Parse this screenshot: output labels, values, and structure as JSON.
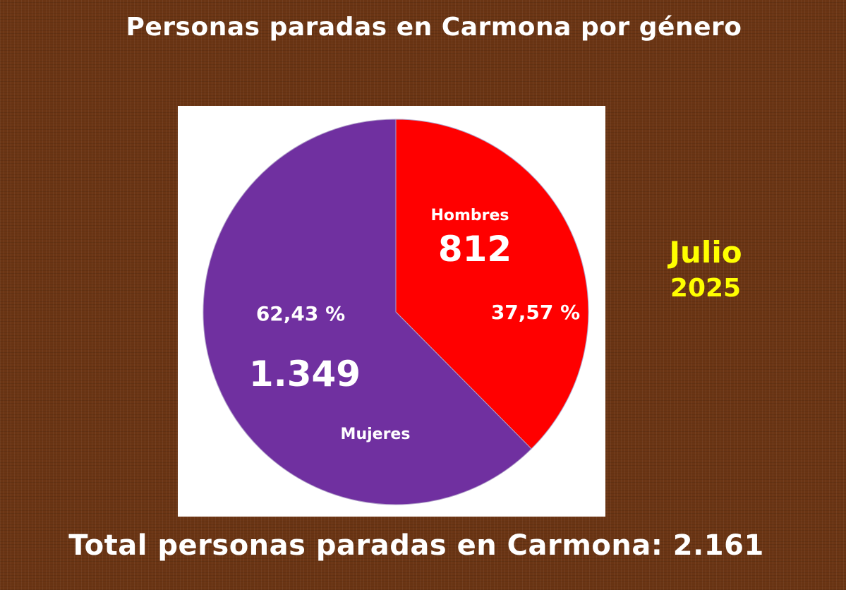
{
  "title": "Personas paradas en Carmona por género",
  "date": {
    "month": "Julio",
    "year": "2025"
  },
  "total": {
    "label": "Total personas paradas en Carmona:",
    "value": "2.161"
  },
  "colors": {
    "background": "#6b3514",
    "panel": "#ffffff",
    "hombres": "#ff0000",
    "mujeres": "#7030a0",
    "date_text": "#ffff00",
    "text": "#ffffff"
  },
  "chart_data": {
    "type": "pie",
    "title": "Personas paradas en Carmona por género",
    "slices": [
      {
        "label": "Hombres",
        "value": 812,
        "value_label": "812",
        "percent": 37.57,
        "percent_label": "37,57 %",
        "color": "#ff0000"
      },
      {
        "label": "Mujeres",
        "value": 1349,
        "value_label": "1.349",
        "percent": 62.43,
        "percent_label": "62,43 %",
        "color": "#7030a0"
      }
    ],
    "start": "12 o'clock, clockwise",
    "legend": "none"
  }
}
